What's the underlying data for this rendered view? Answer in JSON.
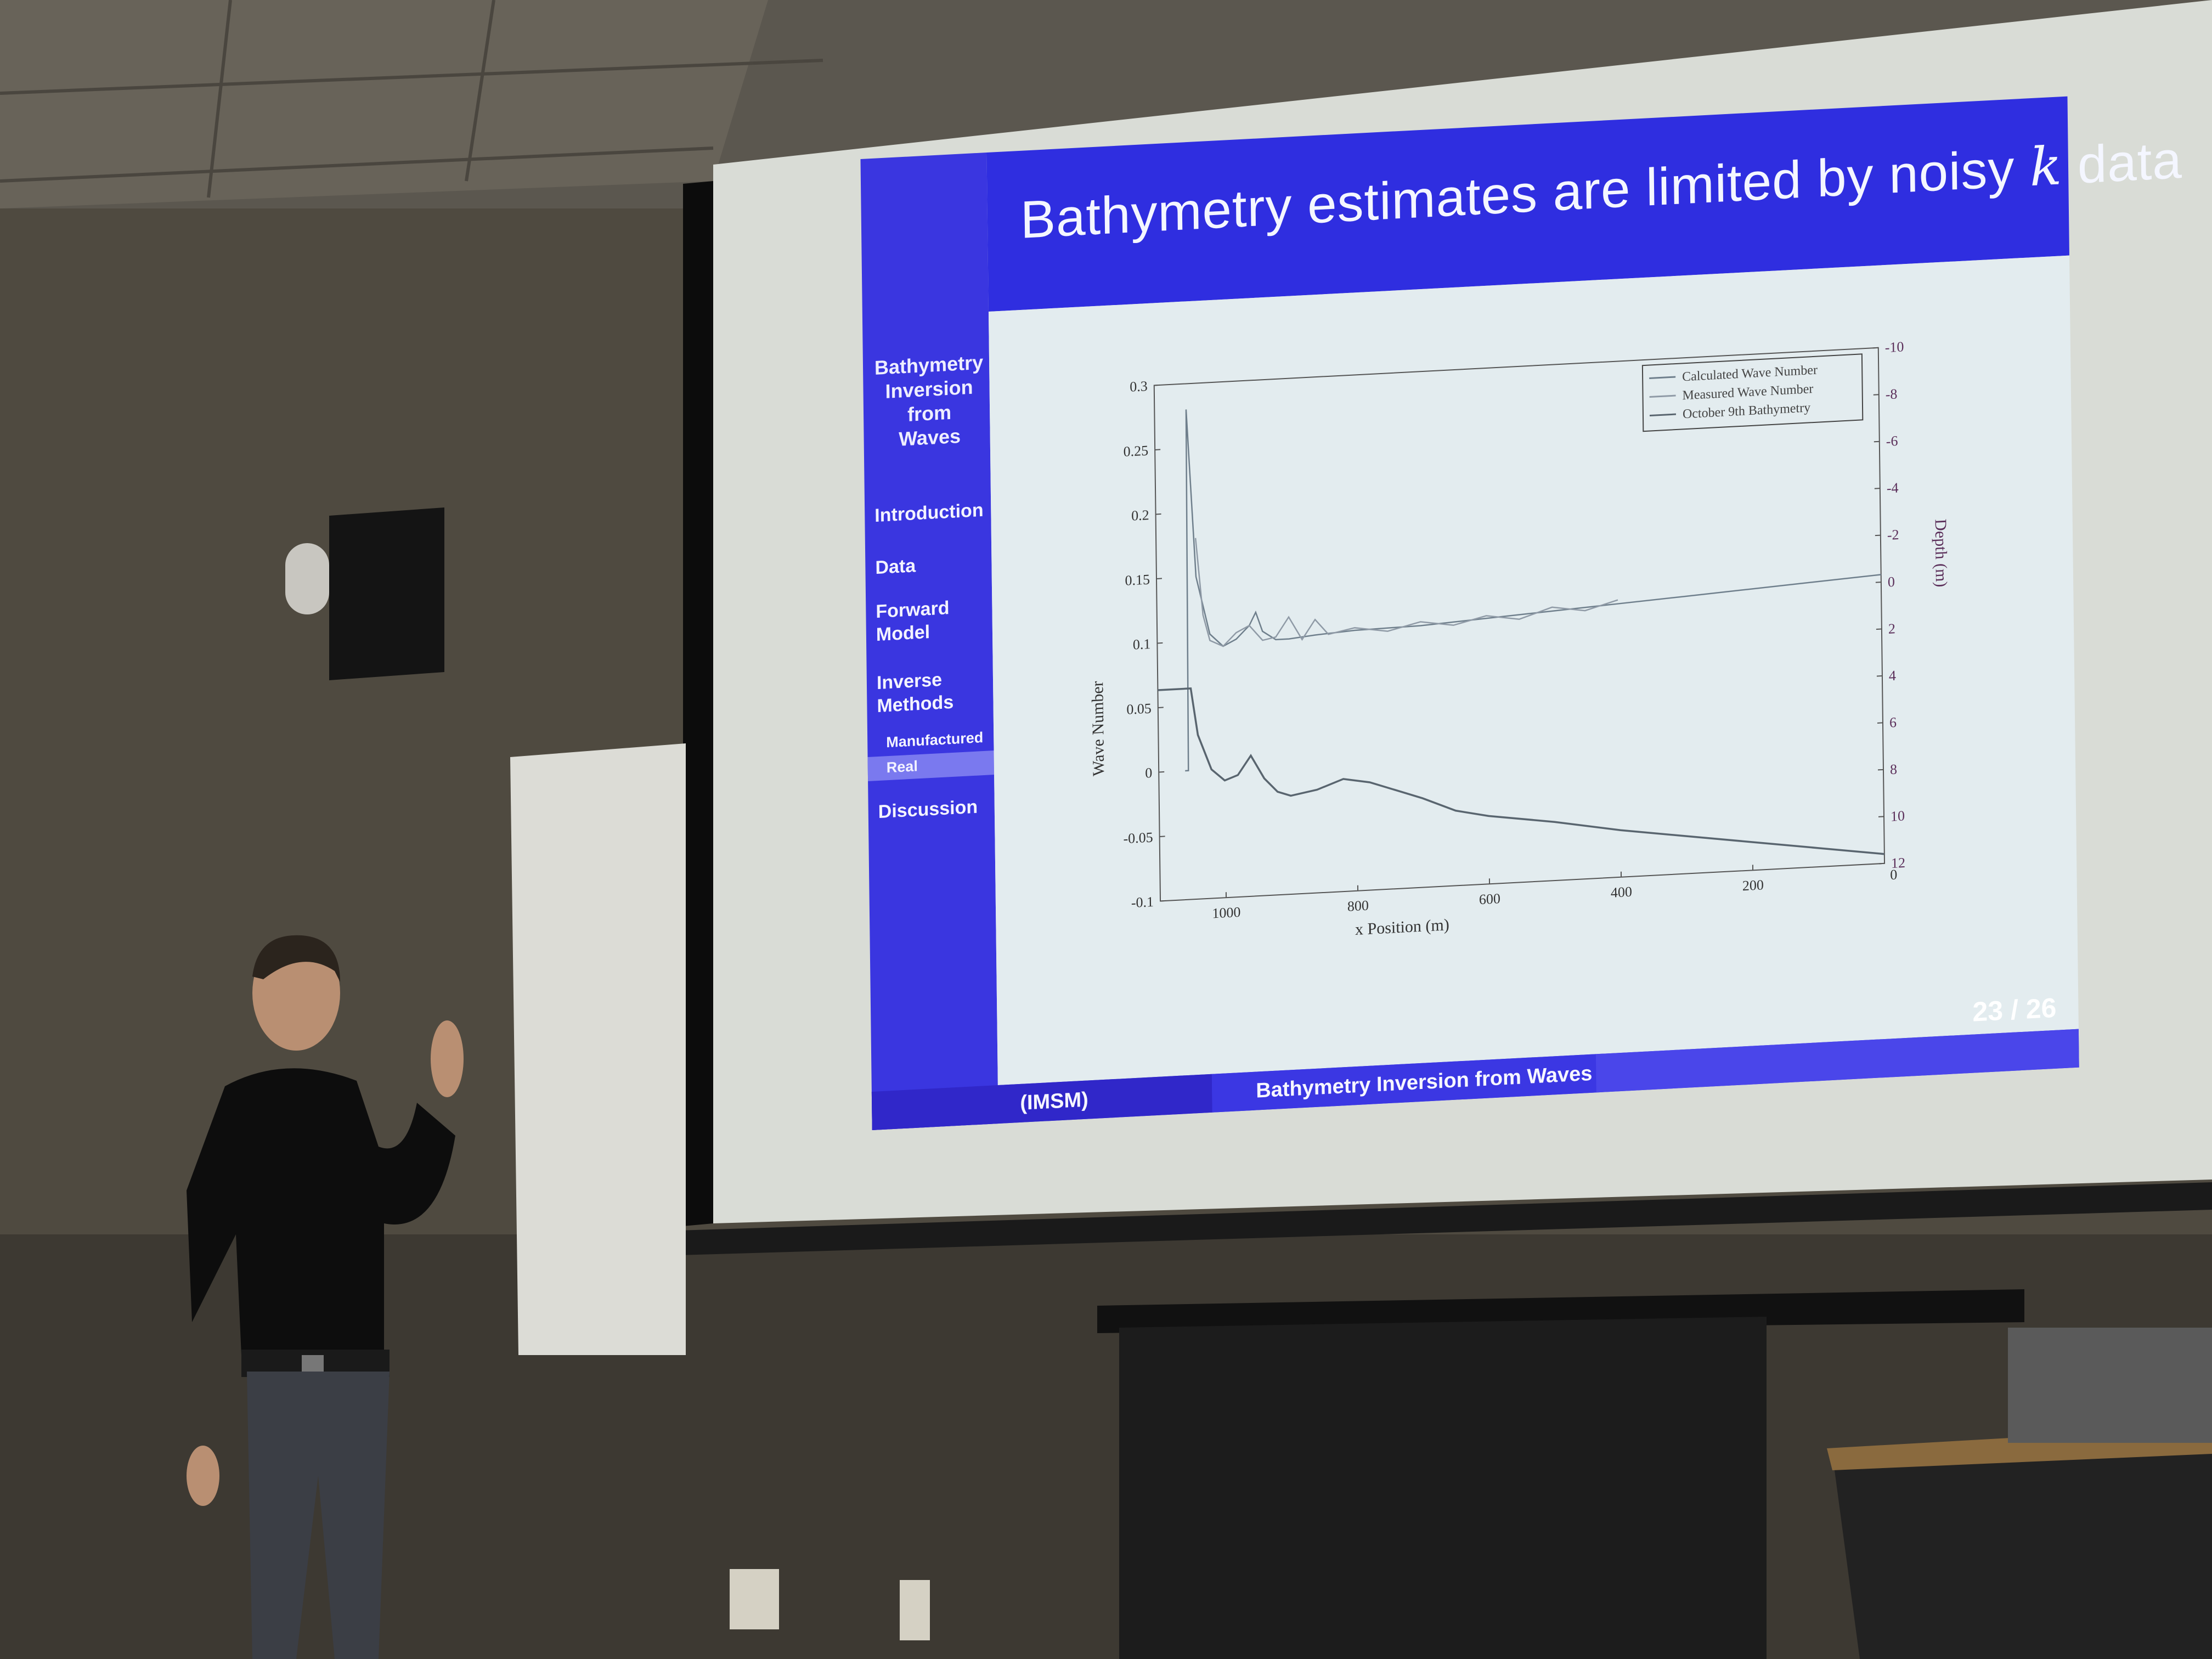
{
  "slide": {
    "title_main": "Bathymetry estimates are limited by noisy ",
    "title_k": "k",
    "title_end": " data",
    "sidebar": {
      "heading": "Bathymetry Inversion from Waves",
      "items": [
        {
          "label": "Introduction"
        },
        {
          "label": "Data"
        },
        {
          "label": "Forward Model"
        },
        {
          "label": "Inverse Methods"
        }
      ],
      "subitems": [
        {
          "label": "Manufactured"
        },
        {
          "label": "Real"
        }
      ],
      "last_item": "Discussion"
    },
    "footer": {
      "institution": "(IMSM)",
      "talk_title": "Bathymetry Inversion from Waves",
      "page": "23 / 26"
    }
  },
  "chart_data": {
    "type": "line",
    "xlabel": "x Position (m)",
    "ylabel": "Wave Number",
    "y2label": "Depth (m)",
    "x_reversed": true,
    "xlim": [
      1100,
      0
    ],
    "ylim": [
      -0.1,
      0.3
    ],
    "y2lim": [
      -10,
      12
    ],
    "x_ticks": [
      "1000",
      "800",
      "600",
      "400",
      "200"
    ],
    "y_ticks": [
      "0.3",
      "0.25",
      "0.2",
      "0.15",
      "0.1",
      "0.05",
      "0",
      "-0.05",
      "-0.1"
    ],
    "y2_ticks": [
      "-10",
      "-8",
      "-6",
      "-4",
      "-2",
      "0",
      "2",
      "4",
      "6",
      "8",
      "10",
      "12"
    ],
    "x_origin_label": "0",
    "legend_position": "top-right",
    "legend": [
      "Calculated Wave Number",
      "Measured Wave Number",
      "October 9th Bathymetry"
    ],
    "series": [
      {
        "name": "Calculated Wave Number",
        "color": "#6f7f8c",
        "x": [
          1060,
          1055,
          1052,
          1040,
          1020,
          1000,
          980,
          960,
          950,
          940,
          920,
          900,
          860,
          800,
          700,
          600,
          500,
          400,
          300,
          200,
          100,
          0
        ],
        "y": [
          0.0,
          0.0,
          0.28,
          0.15,
          0.105,
          0.095,
          0.1,
          0.11,
          0.12,
          0.105,
          0.098,
          0.098,
          0.1,
          0.102,
          0.103,
          0.106,
          0.109,
          0.112,
          0.115,
          0.118,
          0.121,
          0.124
        ]
      },
      {
        "name": "Measured Wave Number",
        "color": "#8f9aa6",
        "x": [
          1040,
          1030,
          1020,
          1000,
          980,
          960,
          940,
          920,
          900,
          880,
          860,
          840,
          800,
          750,
          700,
          650,
          600,
          550,
          500,
          450,
          400
        ],
        "y": [
          0.18,
          0.12,
          0.1,
          0.095,
          0.105,
          0.11,
          0.098,
          0.1,
          0.115,
          0.097,
          0.112,
          0.1,
          0.104,
          0.1,
          0.106,
          0.102,
          0.108,
          0.104,
          0.112,
          0.108,
          0.115
        ]
      },
      {
        "name": "October 9th Bathymetry",
        "color": "#59656f",
        "x": [
          1100,
          1060,
          1050,
          1040,
          1020,
          1000,
          980,
          960,
          940,
          920,
          900,
          860,
          820,
          780,
          740,
          700,
          650,
          600,
          500,
          400,
          300,
          200,
          100,
          0
        ],
        "y": [
          3.0,
          3.0,
          3.0,
          5.0,
          6.5,
          7.0,
          6.8,
          6.0,
          7.0,
          7.6,
          7.8,
          7.6,
          7.2,
          7.4,
          7.8,
          8.2,
          8.8,
          9.1,
          9.5,
          10.0,
          10.4,
          10.8,
          11.2,
          11.6
        ]
      }
    ]
  }
}
